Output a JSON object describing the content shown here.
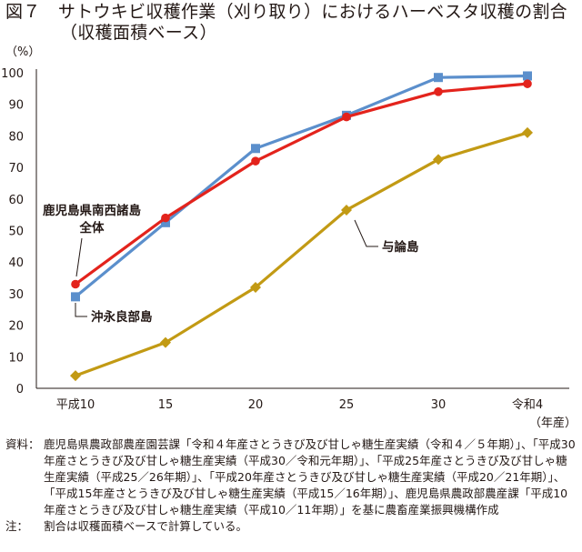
{
  "title": {
    "line1": "図７　サトウキビ収穫作業（刈り取り）におけるハーベスタ収穫の割合",
    "line2": "（収穫面積ベース）"
  },
  "chart_data": {
    "type": "line",
    "y_unit": "（%）",
    "x_unit": "（年産）",
    "categories": [
      "平成10",
      "15",
      "20",
      "25",
      "30",
      "令和4"
    ],
    "ylim": [
      0,
      100
    ],
    "yticks": [
      0,
      10,
      20,
      30,
      40,
      50,
      60,
      70,
      80,
      90,
      100
    ],
    "grid": false,
    "series": [
      {
        "name": "鹿児島県南西諸島全体",
        "label_lines": [
          "鹿児島県南西諸島",
          "全体"
        ],
        "color": "#e3231c",
        "marker": "circle",
        "values": [
          33,
          54,
          72,
          86,
          94,
          96.5
        ]
      },
      {
        "name": "沖永良部島",
        "label_lines": [
          "沖永良部島"
        ],
        "color": "#5b8fcc",
        "marker": "square",
        "values": [
          29,
          52.5,
          76,
          86.5,
          98.5,
          99
        ]
      },
      {
        "name": "与論島",
        "label_lines": [
          "与論島"
        ],
        "color": "#c29a14",
        "marker": "diamond",
        "values": [
          4,
          14.5,
          32,
          56.5,
          72.5,
          81
        ]
      }
    ]
  },
  "notes": {
    "source_head": "資料：",
    "source_body": "鹿児島県農政部農産園芸課「令和４年産さとうきび及び甘しゃ糖生産実績（令和４／５年期）」、「平成30年産さとうきび及び甘しゃ糖生産実績（平成30／令和元年期）」、「平成25年産さとうきび及び甘しゃ糖生産実績（平成25／26年期）」、「平成20年産さとうきび及び甘しゃ糖生産実績（平成20／21年期）」、「平成15年産さとうきび及び甘しゃ糖生産実績（平成15／16年期）」、鹿児島県農政部農産課「平成10年産さとうきび及び甘しゃ糖生産実績（平成10／11年期）」を基に農畜産業振興機構作成",
    "note_head": "注：",
    "note_body": "割合は収穫面積ベースで計算している。"
  }
}
